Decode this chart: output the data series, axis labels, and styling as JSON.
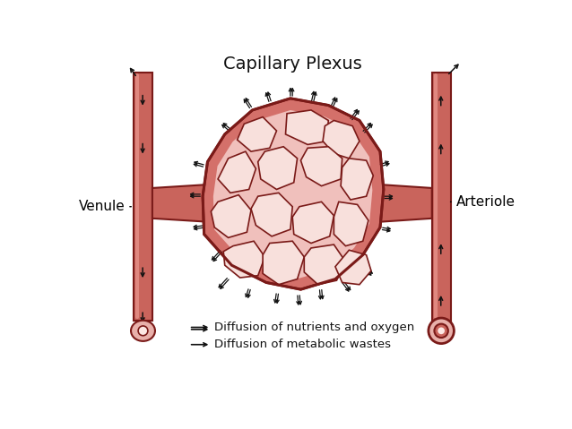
{
  "title": "Capillary Plexus",
  "title_fontsize": 14,
  "label_venule": "Venule",
  "label_arteriole": "Arteriole",
  "legend_line1": "Diffusion of nutrients and oxygen",
  "legend_line2": "Diffusion of metabolic wastes",
  "bg_color": "#ffffff",
  "vessel_fill": "#c9645c",
  "vessel_stroke": "#7a1a18",
  "plexus_fill": "#d4706a",
  "plexus_inner_bg": "#f0c0bc",
  "hole_fill": "#f8e0dc",
  "arrow_color": "#111111",
  "fig_width": 6.38,
  "fig_height": 4.79,
  "dpi": 100
}
